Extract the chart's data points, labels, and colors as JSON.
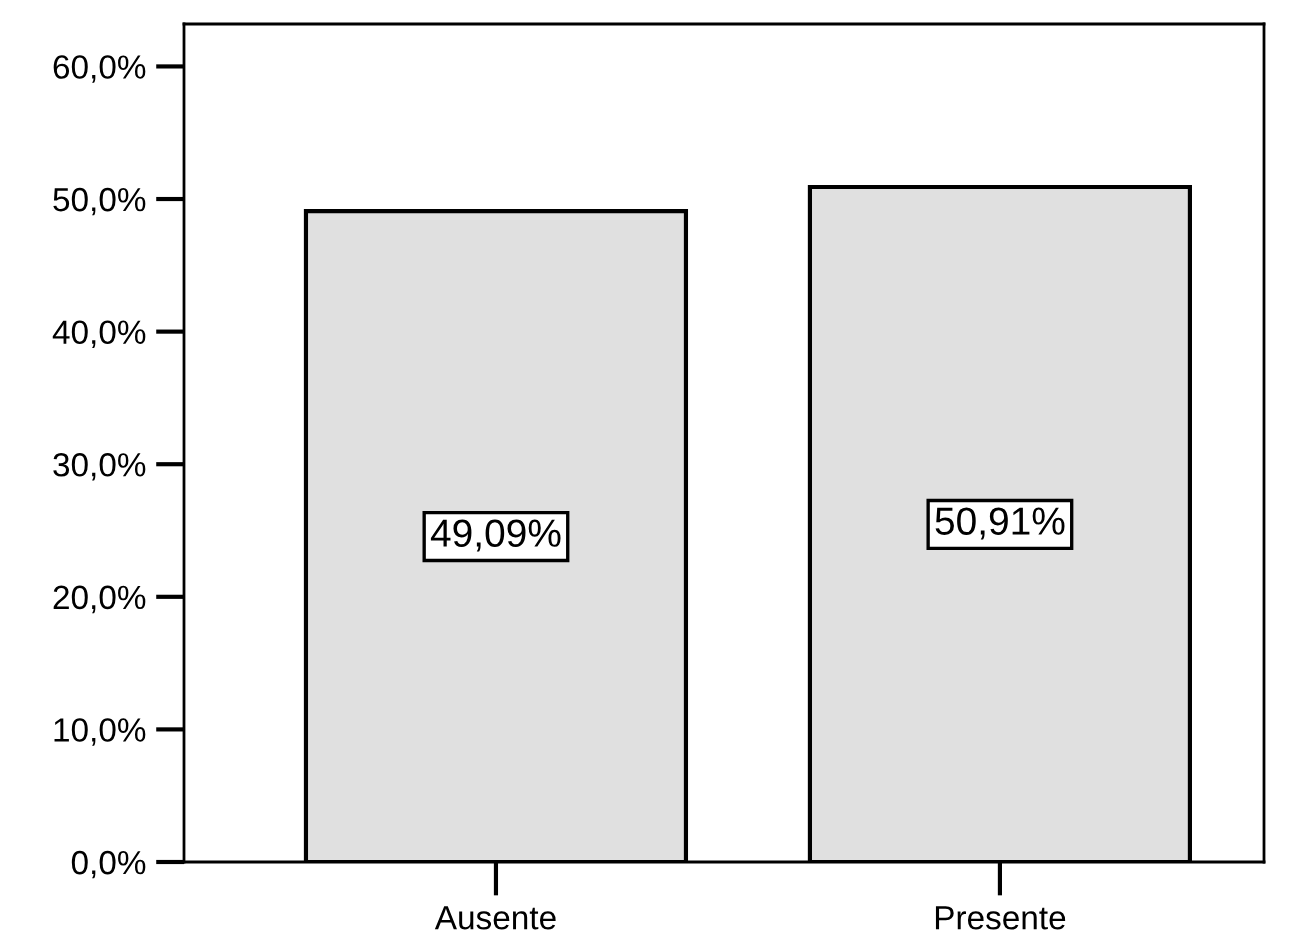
{
  "chart_data": {
    "type": "bar",
    "categories": [
      "Ausente",
      "Presente"
    ],
    "values": [
      49.09,
      50.91
    ],
    "value_labels": [
      "49,09%",
      "50,91%"
    ],
    "color": "#e0e0e0",
    "ylim": [
      0,
      63.2
    ],
    "yticks": [
      {
        "value": 0,
        "label": "0,0%"
      },
      {
        "value": 10,
        "label": "10,0%"
      },
      {
        "value": 20,
        "label": "20,0%"
      },
      {
        "value": 30,
        "label": "30,0%"
      },
      {
        "value": 40,
        "label": "40,0%"
      },
      {
        "value": 50,
        "label": "50,0%"
      },
      {
        "value": 60,
        "label": "60,0%"
      }
    ],
    "grid": false
  }
}
